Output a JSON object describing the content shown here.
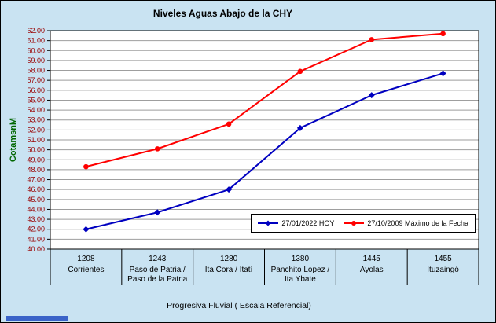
{
  "colors": {
    "background": "#C9E3F2",
    "plot_bg": "#FFFFFF",
    "grid": "#9E9E9E",
    "ytick": "#990000",
    "ylabel_color": "#006600",
    "series_blue": "#0000C0",
    "series_red": "#FF0000",
    "bottom_strip": "#3A63C8"
  },
  "chart_data": {
    "type": "line",
    "title": "Niveles Aguas Abajo de la CHY",
    "ylabel": "CotamsnM",
    "xlabel": "Progresiva Fluvial ( Escala Referencial)",
    "ylim": [
      40,
      62
    ],
    "ytick_step": 1,
    "grid": true,
    "legend_position": "inside-bottom-right",
    "categories": [
      "1208",
      "1243",
      "1280",
      "1380",
      "1445",
      "1455"
    ],
    "category_names": [
      [
        "Corrientes"
      ],
      [
        "Paso de Patria /",
        "Paso de la Patria"
      ],
      [
        "Ita Cora / Itatí"
      ],
      [
        "Panchito Lopez /",
        "Ita Ybate"
      ],
      [
        "Ayolas"
      ],
      [
        "Ituzaingó"
      ]
    ],
    "series": [
      {
        "name": "27/01/2022 HOY",
        "color": "#0000C0",
        "marker": "diamond",
        "values": [
          42.0,
          43.7,
          46.0,
          52.2,
          55.5,
          57.7
        ]
      },
      {
        "name": "27/10/2009 Máximo de la Fecha",
        "color": "#FF0000",
        "marker": "circle",
        "values": [
          48.3,
          50.1,
          52.6,
          57.9,
          61.1,
          61.7
        ]
      }
    ]
  }
}
